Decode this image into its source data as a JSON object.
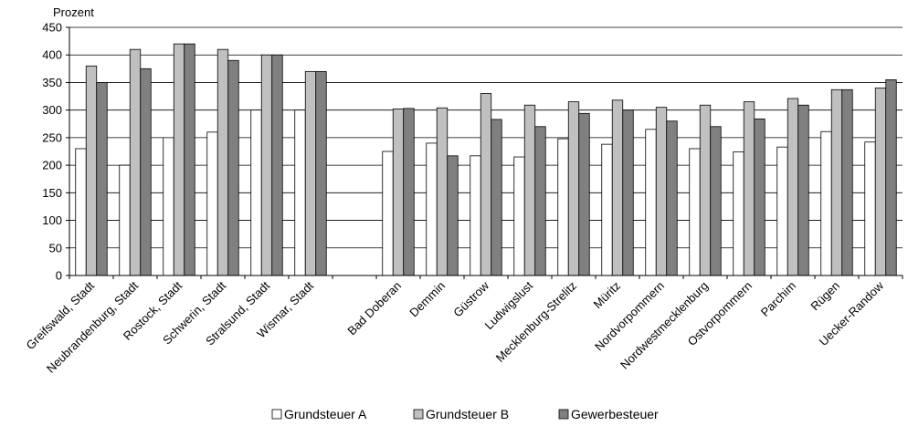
{
  "chart_data": {
    "type": "bar",
    "ylabel": "Prozent",
    "ylim": [
      0,
      450
    ],
    "yticks": [
      0,
      50,
      100,
      150,
      200,
      250,
      300,
      350,
      400,
      450
    ],
    "grid": true,
    "legend_position": "bottom",
    "categories": [
      "Greifswald, Stadt",
      "Neubrandenburg, Stadt",
      "Rostock, Stadt",
      "Schwerin, Stadt",
      "Stralsund, Stadt",
      "Wismar, Stadt",
      "",
      "Bad Doberan",
      "Demmin",
      "Güstrow",
      "Ludwigslust",
      "Mecklenburg-Strelitz",
      "Müritz",
      "Nordvorpommern",
      "Nordwestmecklenburg",
      "Ostvorpommern",
      "Parchim",
      "Rügen",
      "Uecker-Randow"
    ],
    "series": [
      {
        "name": "Grundsteuer A",
        "color": "#ffffff",
        "values": [
          230,
          200,
          250,
          260,
          300,
          300,
          null,
          225,
          240,
          217,
          215,
          248,
          238,
          265,
          230,
          224,
          233,
          261,
          242
        ]
      },
      {
        "name": "Grundsteuer B",
        "color": "#c0c0c0",
        "values": [
          380,
          410,
          420,
          410,
          400,
          370,
          null,
          302,
          304,
          330,
          309,
          315,
          318,
          305,
          309,
          315,
          321,
          337,
          340
        ]
      },
      {
        "name": "Gewerbesteuer",
        "color": "#808080",
        "values": [
          350,
          375,
          420,
          390,
          400,
          370,
          null,
          303,
          217,
          283,
          270,
          294,
          300,
          280,
          270,
          284,
          309,
          337,
          355
        ]
      }
    ]
  }
}
